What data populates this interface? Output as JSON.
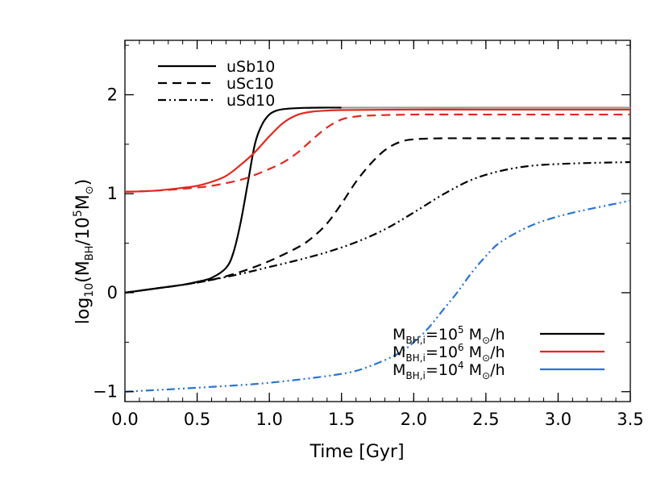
{
  "chart_data": {
    "type": "line",
    "title": "",
    "xlabel": "Time [Gyr]",
    "ylabel": {
      "prefix": "log",
      "prefix_sub": "10",
      "open": "(M",
      "bh_sub": "BH",
      "mid": "/10",
      "exp": "5",
      "m": "M",
      "sun_sub": "⊙",
      "close": ")"
    },
    "xlim": [
      0.0,
      3.5
    ],
    "ylim": [
      -1.1,
      2.55
    ],
    "xticks": [
      0.0,
      0.5,
      1.0,
      1.5,
      2.0,
      2.5,
      3.0,
      3.5
    ],
    "xtick_labels": [
      "0.0",
      "0.5",
      "1.0",
      "1.5",
      "2.0",
      "2.5",
      "3.0",
      "3.5"
    ],
    "yticks": [
      -1,
      0,
      1,
      2
    ],
    "ytick_labels": [
      "−1",
      "0",
      "1",
      "2"
    ],
    "style_legend": {
      "location": "top-left",
      "entries": [
        {
          "label": "uSb10",
          "dash": "solid"
        },
        {
          "label": "uSc10",
          "dash": "dashed"
        },
        {
          "label": "uSd10",
          "dash": "dash-dot-dot"
        }
      ]
    },
    "color_legend": {
      "location": "bottom-right",
      "entries": [
        {
          "pre": "M",
          "sub": "BH,i",
          "eq": "=10",
          "exp": "5",
          "unit": " M",
          "sun": "⊙",
          "post": "/h",
          "color": "#000000"
        },
        {
          "pre": "M",
          "sub": "BH,i",
          "eq": "=10",
          "exp": "6",
          "unit": " M",
          "sun": "⊙",
          "post": "/h",
          "color": "#e0291f"
        },
        {
          "pre": "M",
          "sub": "BH,i",
          "eq": "=10",
          "exp": "4",
          "unit": " M",
          "sun": "⊙",
          "post": "/h",
          "color": "#2a74d4"
        }
      ]
    },
    "series": [
      {
        "name": "uSb10 M_BH,i=10^5",
        "color": "#000000",
        "dash": "solid",
        "x": [
          0,
          0.2,
          0.4,
          0.5,
          0.6,
          0.7,
          0.75,
          0.8,
          0.85,
          0.9,
          0.95,
          1.0,
          1.05,
          1.1,
          1.2,
          1.35,
          1.5
        ],
        "y": [
          0.0,
          0.04,
          0.08,
          0.11,
          0.15,
          0.25,
          0.4,
          0.7,
          1.1,
          1.5,
          1.7,
          1.8,
          1.84,
          1.855,
          1.865,
          1.87,
          1.87
        ]
      },
      {
        "name": "uSb10 M_BH,i=10^5 (continuation)",
        "color": "#9a9a9a",
        "dash": "solid",
        "x": [
          1.5,
          3.5
        ],
        "y": [
          1.87,
          1.87
        ]
      },
      {
        "name": "uSb10 M_BH,i=10^6",
        "color": "#e0291f",
        "dash": "solid",
        "x": [
          0,
          0.2,
          0.4,
          0.5,
          0.6,
          0.7,
          0.8,
          0.9,
          1.0,
          1.1,
          1.2,
          1.3,
          1.4,
          1.5,
          2.0,
          2.5,
          3.0,
          3.5
        ],
        "y": [
          1.02,
          1.03,
          1.06,
          1.08,
          1.12,
          1.18,
          1.29,
          1.42,
          1.58,
          1.72,
          1.8,
          1.83,
          1.84,
          1.845,
          1.85,
          1.85,
          1.85,
          1.85
        ]
      },
      {
        "name": "uSc10 M_BH,i=10^6",
        "color": "#e0291f",
        "dash": "dashed",
        "x": [
          0,
          0.2,
          0.4,
          0.6,
          0.8,
          0.9,
          1.0,
          1.1,
          1.2,
          1.3,
          1.4,
          1.5,
          1.6,
          1.7,
          2.0,
          2.5,
          3.0,
          3.5
        ],
        "y": [
          1.02,
          1.03,
          1.05,
          1.08,
          1.14,
          1.19,
          1.25,
          1.32,
          1.42,
          1.55,
          1.67,
          1.75,
          1.78,
          1.79,
          1.8,
          1.8,
          1.8,
          1.8
        ]
      },
      {
        "name": "uSc10 M_BH,i=10^5",
        "color": "#000000",
        "dash": "dashed",
        "x": [
          0,
          0.2,
          0.4,
          0.6,
          0.8,
          1.0,
          1.2,
          1.3,
          1.4,
          1.5,
          1.6,
          1.7,
          1.8,
          1.9,
          2.0,
          2.2,
          2.5,
          3.0,
          3.5
        ],
        "y": [
          0.0,
          0.04,
          0.08,
          0.13,
          0.21,
          0.32,
          0.46,
          0.56,
          0.7,
          0.9,
          1.12,
          1.3,
          1.44,
          1.52,
          1.55,
          1.56,
          1.56,
          1.56,
          1.56
        ]
      },
      {
        "name": "uSd10 M_BH,i=10^5",
        "color": "#000000",
        "dash": "dash-dot-dot",
        "x": [
          0,
          0.2,
          0.4,
          0.6,
          0.8,
          1.0,
          1.2,
          1.4,
          1.6,
          1.8,
          2.0,
          2.2,
          2.4,
          2.6,
          2.8,
          3.0,
          3.2,
          3.5
        ],
        "y": [
          0.0,
          0.04,
          0.08,
          0.13,
          0.19,
          0.26,
          0.33,
          0.41,
          0.51,
          0.64,
          0.81,
          0.99,
          1.14,
          1.23,
          1.28,
          1.3,
          1.31,
          1.32
        ]
      },
      {
        "name": "uSd10 M_BH,i=10^4",
        "color": "#2a74d4",
        "dash": "dash-dot-dot",
        "x": [
          0,
          0.5,
          1.0,
          1.5,
          1.7,
          1.9,
          2.0,
          2.1,
          2.2,
          2.3,
          2.4,
          2.5,
          2.6,
          2.8,
          3.0,
          3.2,
          3.4,
          3.5
        ],
        "y": [
          -1.0,
          -0.96,
          -0.91,
          -0.82,
          -0.74,
          -0.61,
          -0.5,
          -0.36,
          -0.18,
          0.0,
          0.2,
          0.37,
          0.51,
          0.67,
          0.77,
          0.84,
          0.9,
          0.93
        ]
      }
    ]
  }
}
